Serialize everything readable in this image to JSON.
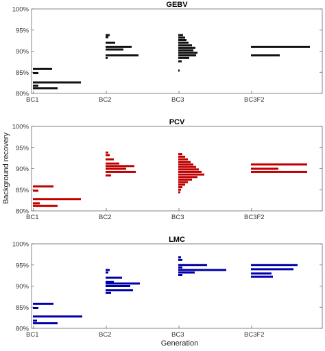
{
  "chart_data": {
    "type": "histogram-panels",
    "ylabel": "Background recovery",
    "xlabel": "Generation",
    "categories": [
      "BC1",
      "BC2",
      "BC3",
      "BC3F2"
    ],
    "ylim": [
      80,
      100
    ],
    "yticks": [
      "80%",
      "85%",
      "90%",
      "95%",
      "100%"
    ],
    "grid": false,
    "panels": [
      {
        "title": "GEBV",
        "color": "#111111",
        "series": [
          {
            "category": "BC1",
            "bins": [
              {
                "y": 85.8,
                "v": 0.28
              },
              {
                "y": 84.8,
                "v": 0.08
              },
              {
                "y": 82.6,
                "v": 0.7
              },
              {
                "y": 81.8,
                "v": 0.08
              },
              {
                "y": 81.2,
                "v": 0.36
              }
            ]
          },
          {
            "category": "BC2",
            "bins": [
              {
                "y": 93.8,
                "v": 0.06
              },
              {
                "y": 93.3,
                "v": 0.04
              },
              {
                "y": 92.0,
                "v": 0.14
              },
              {
                "y": 91.0,
                "v": 0.38
              },
              {
                "y": 90.4,
                "v": 0.26
              },
              {
                "y": 89.0,
                "v": 0.48
              },
              {
                "y": 88.4,
                "v": 0.03
              }
            ]
          },
          {
            "category": "BC3",
            "bins": [
              {
                "y": 93.8,
                "v": 0.07
              },
              {
                "y": 93.2,
                "v": 0.1
              },
              {
                "y": 92.6,
                "v": 0.12
              },
              {
                "y": 92.0,
                "v": 0.15
              },
              {
                "y": 91.4,
                "v": 0.2
              },
              {
                "y": 90.8,
                "v": 0.25
              },
              {
                "y": 90.2,
                "v": 0.22
              },
              {
                "y": 89.6,
                "v": 0.28
              },
              {
                "y": 89.0,
                "v": 0.26
              },
              {
                "y": 88.4,
                "v": 0.16
              },
              {
                "y": 87.6,
                "v": 0.05
              },
              {
                "y": 85.4,
                "v": 0.02
              }
            ]
          },
          {
            "category": "BC3F2",
            "bins": [
              {
                "y": 91.0,
                "v": 0.86
              },
              {
                "y": 89.0,
                "v": 0.42
              }
            ]
          }
        ]
      },
      {
        "title": "PCV",
        "color": "#c00000",
        "series": [
          {
            "category": "BC1",
            "bins": [
              {
                "y": 85.8,
                "v": 0.3
              },
              {
                "y": 84.8,
                "v": 0.08
              },
              {
                "y": 82.8,
                "v": 0.7
              },
              {
                "y": 81.8,
                "v": 0.1
              },
              {
                "y": 81.2,
                "v": 0.36
              }
            ]
          },
          {
            "category": "BC2",
            "bins": [
              {
                "y": 93.8,
                "v": 0.04
              },
              {
                "y": 93.2,
                "v": 0.06
              },
              {
                "y": 92.2,
                "v": 0.12
              },
              {
                "y": 91.2,
                "v": 0.2
              },
              {
                "y": 90.6,
                "v": 0.42
              },
              {
                "y": 90.0,
                "v": 0.3
              },
              {
                "y": 89.2,
                "v": 0.44
              },
              {
                "y": 88.4,
                "v": 0.08
              }
            ]
          },
          {
            "category": "BC3",
            "bins": [
              {
                "y": 93.4,
                "v": 0.06
              },
              {
                "y": 92.8,
                "v": 0.1
              },
              {
                "y": 92.2,
                "v": 0.14
              },
              {
                "y": 91.6,
                "v": 0.18
              },
              {
                "y": 91.0,
                "v": 0.22
              },
              {
                "y": 90.4,
                "v": 0.26
              },
              {
                "y": 89.8,
                "v": 0.3
              },
              {
                "y": 89.2,
                "v": 0.34
              },
              {
                "y": 88.6,
                "v": 0.38
              },
              {
                "y": 88.0,
                "v": 0.28
              },
              {
                "y": 87.4,
                "v": 0.2
              },
              {
                "y": 86.8,
                "v": 0.14
              },
              {
                "y": 86.2,
                "v": 0.1
              },
              {
                "y": 85.6,
                "v": 0.06
              },
              {
                "y": 85.0,
                "v": 0.04
              },
              {
                "y": 84.4,
                "v": 0.03
              }
            ]
          },
          {
            "category": "BC3F2",
            "bins": [
              {
                "y": 91.0,
                "v": 0.82
              },
              {
                "y": 90.0,
                "v": 0.4
              },
              {
                "y": 89.2,
                "v": 0.82
              }
            ]
          }
        ]
      },
      {
        "title": "LMC",
        "color": "#0000aa",
        "series": [
          {
            "category": "BC1",
            "bins": [
              {
                "y": 85.8,
                "v": 0.3
              },
              {
                "y": 84.8,
                "v": 0.08
              },
              {
                "y": 82.8,
                "v": 0.72
              },
              {
                "y": 81.8,
                "v": 0.06
              },
              {
                "y": 81.2,
                "v": 0.36
              }
            ]
          },
          {
            "category": "BC2",
            "bins": [
              {
                "y": 93.8,
                "v": 0.06
              },
              {
                "y": 93.2,
                "v": 0.04
              },
              {
                "y": 92.0,
                "v": 0.24
              },
              {
                "y": 91.0,
                "v": 0.12
              },
              {
                "y": 90.6,
                "v": 0.5
              },
              {
                "y": 90.0,
                "v": 0.36
              },
              {
                "y": 89.0,
                "v": 0.4
              },
              {
                "y": 88.4,
                "v": 0.08
              }
            ]
          },
          {
            "category": "BC3",
            "bins": [
              {
                "y": 96.8,
                "v": 0.04
              },
              {
                "y": 96.2,
                "v": 0.06
              },
              {
                "y": 95.0,
                "v": 0.42
              },
              {
                "y": 94.4,
                "v": 0.06
              },
              {
                "y": 93.8,
                "v": 0.7
              },
              {
                "y": 93.2,
                "v": 0.24
              },
              {
                "y": 92.6,
                "v": 0.06
              }
            ]
          },
          {
            "category": "BC3F2",
            "bins": [
              {
                "y": 95.0,
                "v": 0.68
              },
              {
                "y": 94.0,
                "v": 0.62
              },
              {
                "y": 93.0,
                "v": 0.3
              },
              {
                "y": 92.2,
                "v": 0.32
              }
            ]
          }
        ]
      }
    ]
  }
}
